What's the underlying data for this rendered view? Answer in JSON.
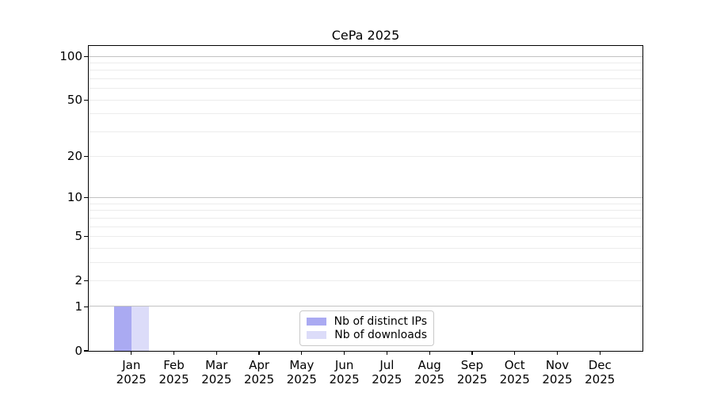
{
  "figure": {
    "background": "#ffffff"
  },
  "chart_data": {
    "type": "bar",
    "title": "CePa 2025",
    "categories": [
      [
        "Jan",
        "2025"
      ],
      [
        "Feb",
        "2025"
      ],
      [
        "Mar",
        "2025"
      ],
      [
        "Apr",
        "2025"
      ],
      [
        "May",
        "2025"
      ],
      [
        "Jun",
        "2025"
      ],
      [
        "Jul",
        "2025"
      ],
      [
        "Aug",
        "2025"
      ],
      [
        "Sep",
        "2025"
      ],
      [
        "Oct",
        "2025"
      ],
      [
        "Nov",
        "2025"
      ],
      [
        "Dec",
        "2025"
      ]
    ],
    "series": [
      {
        "name": "Nb of distinct IPs",
        "color": "#aaaaf2",
        "values": [
          1,
          0,
          0,
          0,
          0,
          0,
          0,
          0,
          0,
          0,
          0,
          0
        ]
      },
      {
        "name": "Nb of downloads",
        "color": "#dcdcf9",
        "values": [
          1,
          0,
          0,
          0,
          0,
          0,
          0,
          0,
          0,
          0,
          0,
          0
        ]
      }
    ],
    "yscale": "log1p",
    "ylim": [
      0,
      118
    ],
    "yticks": [
      0,
      1,
      2,
      5,
      10,
      20,
      50,
      100
    ],
    "major_gridlines": [
      1,
      10,
      100
    ],
    "minor_gridlines": [
      2,
      3,
      4,
      5,
      6,
      7,
      8,
      9,
      20,
      30,
      40,
      50,
      60,
      70,
      80,
      90
    ],
    "grid": true,
    "legend_position": "lower center",
    "colors": {
      "axis": "#000000",
      "text": "#000000",
      "major_grid": "#c2c2c2",
      "minor_grid": "#ececec",
      "legend_border": "#c9c9c9"
    }
  }
}
